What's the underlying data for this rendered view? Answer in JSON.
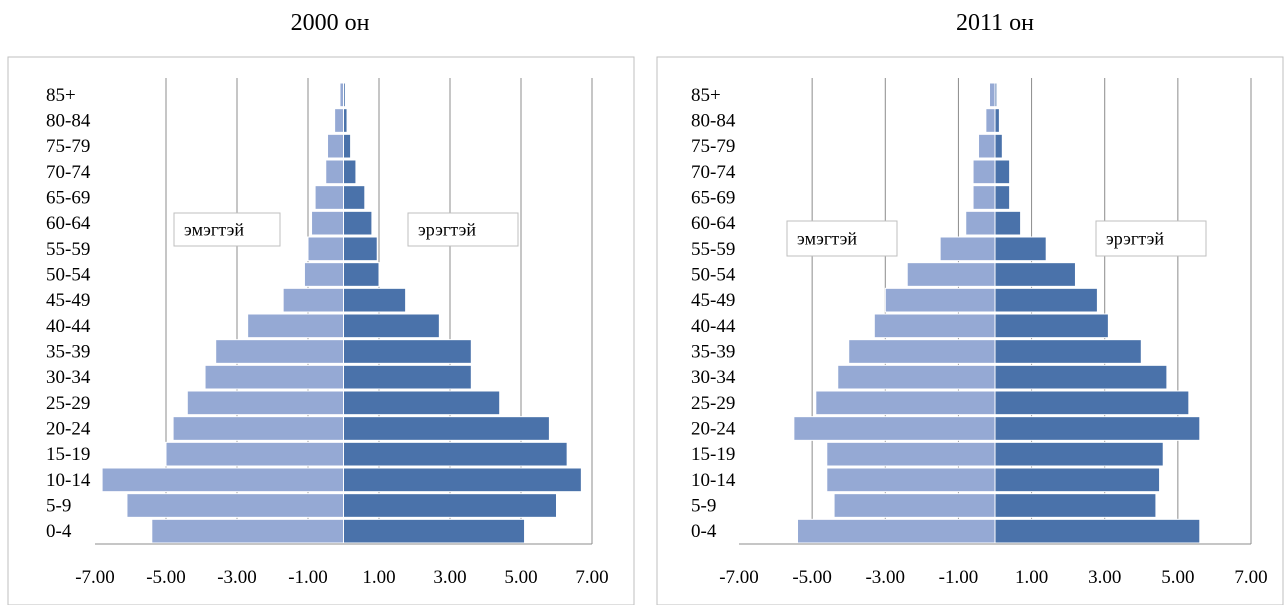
{
  "chart_data": [
    {
      "type": "bar",
      "title": "2000 он",
      "categories": [
        "0-4",
        "5-9",
        "10-14",
        "15-19",
        "20-24",
        "25-29",
        "30-34",
        "35-39",
        "40-44",
        "45-49",
        "50-54",
        "55-59",
        "60-64",
        "65-69",
        "70-74",
        "75-79",
        "80-84",
        "85+"
      ],
      "series": [
        {
          "name": "эмэгтэй",
          "values": [
            -5.4,
            -6.1,
            -6.8,
            -5.0,
            -4.8,
            -4.4,
            -3.9,
            -3.6,
            -2.7,
            -1.7,
            -1.1,
            -1.0,
            -0.9,
            -0.8,
            -0.5,
            -0.45,
            -0.25,
            -0.1
          ],
          "color": "#95a9d4"
        },
        {
          "name": "эрэгтэй",
          "values": [
            5.1,
            6.0,
            6.7,
            6.3,
            5.8,
            4.4,
            3.6,
            3.6,
            2.7,
            1.75,
            1.0,
            0.95,
            0.8,
            0.6,
            0.35,
            0.2,
            0.1,
            0.05
          ],
          "color": "#4a72aa"
        }
      ],
      "xlim": [
        -7,
        7
      ],
      "xticks": [
        "-7.00",
        "-5.00",
        "-3.00",
        "-1.00",
        "1.00",
        "3.00",
        "5.00",
        "7.00"
      ]
    },
    {
      "type": "bar",
      "title": "2011 он",
      "categories": [
        "0-4",
        "5-9",
        "10-14",
        "15-19",
        "20-24",
        "25-29",
        "30-34",
        "35-39",
        "40-44",
        "45-49",
        "50-54",
        "55-59",
        "60-64",
        "65-69",
        "70-74",
        "75-79",
        "80-84",
        "85+"
      ],
      "series": [
        {
          "name": "эмэгтэй",
          "values": [
            -5.4,
            -4.4,
            -4.6,
            -4.6,
            -5.5,
            -4.9,
            -4.3,
            -4.0,
            -3.3,
            -3.0,
            -2.4,
            -1.5,
            -0.8,
            -0.6,
            -0.6,
            -0.45,
            -0.25,
            -0.15
          ],
          "color": "#95a9d4"
        },
        {
          "name": "эрэгтэй",
          "values": [
            5.6,
            4.4,
            4.5,
            4.6,
            5.6,
            5.3,
            4.7,
            4.0,
            3.1,
            2.8,
            2.2,
            1.4,
            0.7,
            0.4,
            0.4,
            0.2,
            0.12,
            0.05
          ],
          "color": "#4a72aa"
        }
      ],
      "xlim": [
        -7,
        7
      ],
      "xticks": [
        "-7.00",
        "-5.00",
        "-3.00",
        "-1.00",
        "1.00",
        "3.00",
        "5.00",
        "7.00"
      ]
    }
  ]
}
